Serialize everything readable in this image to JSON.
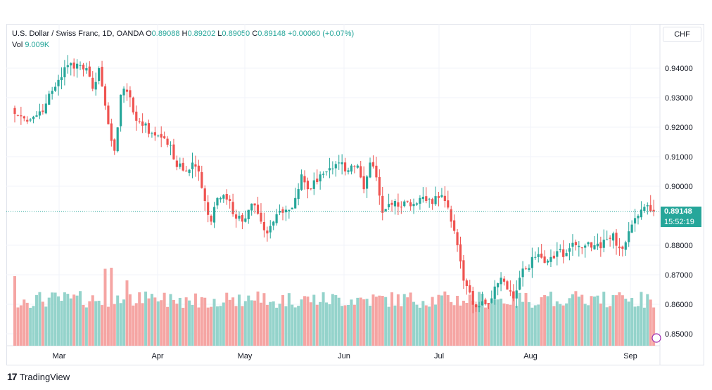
{
  "header": {
    "symbol_name": "U.S. Dollar / Swiss Franc, 1D, OANDA",
    "o_label": "O",
    "o_value": "0.89088",
    "h_label": "H",
    "h_value": "0.89202",
    "l_label": "L",
    "l_value": "0.89050",
    "c_label": "C",
    "c_value": "0.89148",
    "change": "+0.00060 (+0.07%)",
    "vol_label": "Vol",
    "vol_value": "9.009K"
  },
  "currency_button": "CHF",
  "price_tag": "0.89148",
  "countdown": "15:52:19",
  "brand": "TradingView",
  "colors": {
    "up": "#26a69a",
    "down": "#ef5350",
    "up_vol": "#94d3cb",
    "down_vol": "#f5a5a3"
  },
  "chart_data": {
    "type": "candlestick",
    "y_axis": {
      "min": 0.845,
      "max": 0.945,
      "ticks": [
        "0.94000",
        "0.93000",
        "0.92000",
        "0.91000",
        "0.90000",
        "0.88000",
        "0.87000",
        "0.86000",
        "0.85000"
      ]
    },
    "x_ticks": [
      "Mar",
      "Apr",
      "May",
      "Jun",
      "Jul",
      "Aug",
      "Sep"
    ],
    "grid": true,
    "last_price": 0.89148,
    "waypoints": [
      [
        0,
        0.9245
      ],
      [
        3,
        0.923
      ],
      [
        7,
        0.924
      ],
      [
        10,
        0.928
      ],
      [
        14,
        0.936
      ],
      [
        17,
        0.941
      ],
      [
        20,
        0.9415
      ],
      [
        23,
        0.94
      ],
      [
        25,
        0.933
      ],
      [
        27,
        0.94
      ],
      [
        30,
        0.921
      ],
      [
        32,
        0.912
      ],
      [
        34,
        0.931
      ],
      [
        36,
        0.932
      ],
      [
        38,
        0.925
      ],
      [
        41,
        0.9205
      ],
      [
        44,
        0.918
      ],
      [
        47,
        0.9165
      ],
      [
        50,
        0.914
      ],
      [
        52,
        0.9065
      ],
      [
        55,
        0.905
      ],
      [
        57,
        0.908
      ],
      [
        59,
        0.905
      ],
      [
        61,
        0.895
      ],
      [
        63,
        0.888
      ],
      [
        65,
        0.896
      ],
      [
        67,
        0.897
      ],
      [
        69,
        0.895
      ],
      [
        71,
        0.889
      ],
      [
        73,
        0.888
      ],
      [
        75,
        0.892
      ],
      [
        77,
        0.8935
      ],
      [
        79,
        0.888
      ],
      [
        81,
        0.884
      ],
      [
        84,
        0.8905
      ],
      [
        86,
        0.891
      ],
      [
        88,
        0.892
      ],
      [
        90,
        0.896
      ],
      [
        92,
        0.904
      ],
      [
        94,
        0.899
      ],
      [
        96,
        0.902
      ],
      [
        98,
        0.904
      ],
      [
        100,
        0.905
      ],
      [
        102,
        0.906
      ],
      [
        104,
        0.908
      ],
      [
        106,
        0.905
      ],
      [
        108,
        0.907
      ],
      [
        110,
        0.907
      ],
      [
        112,
        0.899
      ],
      [
        114,
        0.908
      ],
      [
        116,
        0.903
      ],
      [
        118,
        0.891
      ],
      [
        120,
        0.894
      ],
      [
        122,
        0.895
      ],
      [
        124,
        0.893
      ],
      [
        126,
        0.895
      ],
      [
        128,
        0.894
      ],
      [
        130,
        0.896
      ],
      [
        132,
        0.895
      ],
      [
        134,
        0.894
      ],
      [
        136,
        0.896
      ],
      [
        138,
        0.895
      ],
      [
        140,
        0.888
      ],
      [
        142,
        0.88
      ],
      [
        144,
        0.868
      ],
      [
        146,
        0.864
      ],
      [
        148,
        0.859
      ],
      [
        150,
        0.861
      ],
      [
        152,
        0.86
      ],
      [
        154,
        0.866
      ],
      [
        156,
        0.869
      ],
      [
        158,
        0.865
      ],
      [
        160,
        0.862
      ],
      [
        162,
        0.869
      ],
      [
        164,
        0.872
      ],
      [
        166,
        0.876
      ],
      [
        168,
        0.877
      ],
      [
        170,
        0.874
      ],
      [
        172,
        0.876
      ],
      [
        174,
        0.878
      ],
      [
        176,
        0.876
      ],
      [
        178,
        0.879
      ],
      [
        180,
        0.88
      ],
      [
        182,
        0.879
      ],
      [
        184,
        0.881
      ],
      [
        186,
        0.88
      ],
      [
        188,
        0.879
      ],
      [
        190,
        0.882
      ],
      [
        192,
        0.884
      ],
      [
        194,
        0.879
      ],
      [
        196,
        0.881
      ],
      [
        198,
        0.887
      ],
      [
        200,
        0.89
      ],
      [
        202,
        0.893
      ],
      [
        204,
        0.8915
      ],
      [
        205,
        0.89148
      ]
    ],
    "volume_peak_days": [
      [
        0,
        0.66
      ],
      [
        29,
        0.73
      ],
      [
        31,
        0.74
      ],
      [
        36,
        0.62
      ],
      [
        86,
        0.48
      ],
      [
        170,
        0.48
      ]
    ]
  }
}
